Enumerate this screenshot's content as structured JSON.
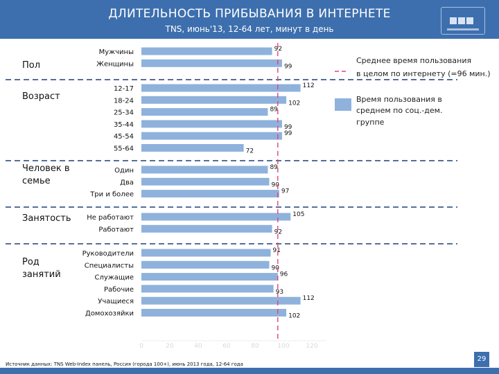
{
  "header": {
    "title": "ДЛИТЕЛЬНОСТЬ ПРИБЫВАНИЯ В ИНТЕРНЕТЕ",
    "subtitle": "TNS, июнь'13, 12-64 лет, минут в день"
  },
  "colors": {
    "bar": "#8fb2dc",
    "reference": "#e0427f",
    "divider": "#1f3d7a",
    "header": "#3d6fae"
  },
  "legend": {
    "reference_label_1": "Среднее время пользования",
    "reference_label_2": "в целом по интернету (=96 мин.)",
    "bar_label_1": "Время пользования в",
    "bar_label_2": "среднем по соц.-дем.",
    "bar_label_3": "группе"
  },
  "chart_data": {
    "type": "bar",
    "orientation": "horizontal",
    "title": "ДЛИТЕЛЬНОСТЬ ПРИБЫВАНИЯ В ИНТЕРНЕТЕ",
    "unit": "минут в день",
    "xlim": [
      0,
      130
    ],
    "x_ticks": [
      "0",
      "20",
      "40",
      "60",
      "80",
      "100",
      "120"
    ],
    "reference_line": {
      "value": 96,
      "label": "Среднее время пользования в целом по интернету (=96 мин.)"
    },
    "groups": [
      {
        "name": "Пол",
        "name_lines": [
          "Пол"
        ],
        "categories": [
          "Мужчины",
          "Женщины"
        ],
        "values": [
          92,
          99
        ]
      },
      {
        "name": "Возраст",
        "name_lines": [
          "Возраст"
        ],
        "categories": [
          "12-17",
          "18-24",
          "25-34",
          "35-44",
          "45-54",
          "55-64"
        ],
        "values": [
          112,
          102,
          89,
          99,
          99,
          72
        ]
      },
      {
        "name": "Человек в семье",
        "name_lines": [
          "Человек в",
          "семье"
        ],
        "categories": [
          "Один",
          "Два",
          "Три и более"
        ],
        "values": [
          89,
          90,
          97
        ]
      },
      {
        "name": "Занятость",
        "name_lines": [
          "Занятость"
        ],
        "categories": [
          "Не работают",
          "Работают"
        ],
        "values": [
          105,
          92
        ]
      },
      {
        "name": "Род занятий",
        "name_lines": [
          "Род",
          "занятий"
        ],
        "categories": [
          "Руководители",
          "Специалисты",
          "Служащие",
          "Рабочие",
          "Учащиеся",
          "Домохозяйки"
        ],
        "values": [
          91,
          90,
          96,
          93,
          112,
          102
        ]
      }
    ]
  },
  "footer": {
    "source": "Источник данных: TNS Web-Index панель, Россия (города 100+), июнь 2013 года, 12-64 года",
    "page_number": "29"
  }
}
